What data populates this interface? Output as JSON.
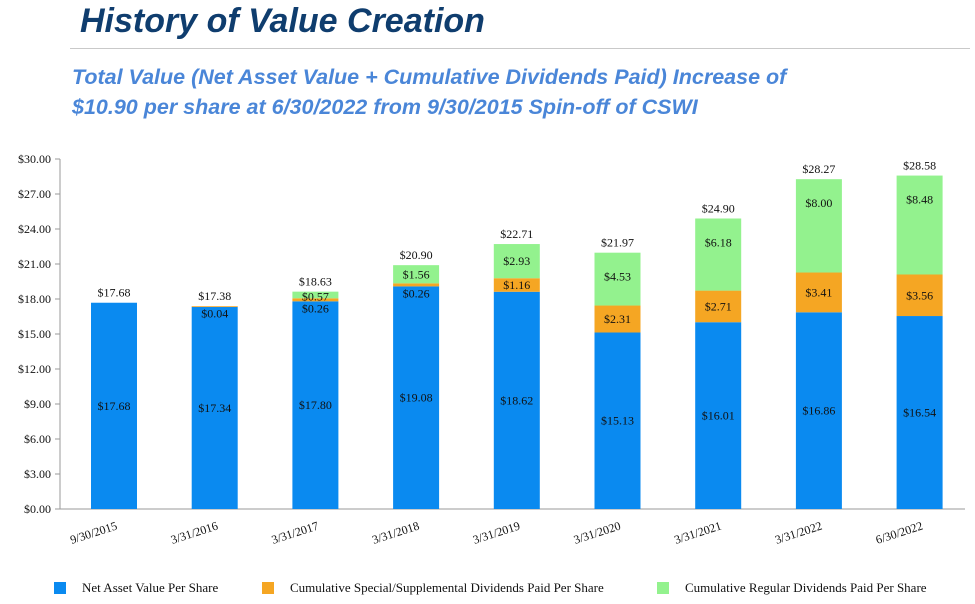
{
  "header": {
    "title": "History of Value Creation",
    "subtitle_line1": "Total Value (Net Asset Value + Cumulative Dividends Paid) Increase of",
    "subtitle_line2": "$10.90 per share at 6/30/2022 from 9/30/2015 Spin-off of CSWI"
  },
  "colors": {
    "nav": "#0A8AF0",
    "special": "#F5A623",
    "regular": "#93F28E",
    "title": "#0F3D6E",
    "subtitle": "#4A86D8"
  },
  "chart_data": {
    "type": "bar",
    "stacked": true,
    "categories": [
      "9/30/2015",
      "3/31/2016",
      "3/31/2017",
      "3/31/2018",
      "3/31/2019",
      "3/31/2020",
      "3/31/2021",
      "3/31/2022",
      "6/30/2022"
    ],
    "series": [
      {
        "name": "Net Asset Value Per Share",
        "color": "#0A8AF0",
        "values": [
          17.68,
          17.34,
          17.8,
          19.08,
          18.62,
          15.13,
          16.01,
          16.86,
          16.54
        ],
        "labels": [
          "$17.68",
          "$17.34",
          "$17.80",
          "$19.08",
          "$18.62",
          "$15.13",
          "$16.01",
          "$16.86",
          "$16.54"
        ]
      },
      {
        "name": "Cumulative Special/Supplemental Dividends Paid Per Share",
        "color": "#F5A623",
        "values": [
          0,
          0.04,
          0.26,
          0.26,
          1.16,
          2.31,
          2.71,
          3.41,
          3.56
        ],
        "labels": [
          "",
          "$0.04",
          "$0.26",
          "$0.26",
          "$1.16",
          "$2.31",
          "$2.71",
          "$3.41",
          "$3.56"
        ]
      },
      {
        "name": "Cumulative Regular Dividends Paid Per Share",
        "color": "#93F28E",
        "values": [
          0,
          0,
          0.57,
          1.56,
          2.93,
          4.53,
          6.18,
          8.0,
          8.48
        ],
        "labels": [
          "",
          "",
          "$0.57",
          "$1.56",
          "$2.93",
          "$4.53",
          "$6.18",
          "$8.00",
          "$8.48"
        ]
      }
    ],
    "totals": [
      17.68,
      17.38,
      18.63,
      20.9,
      22.71,
      21.97,
      24.9,
      28.27,
      28.58
    ],
    "total_labels": [
      "$17.68",
      "$17.38",
      "$18.63",
      "$20.90",
      "$22.71",
      "$21.97",
      "$24.90",
      "$28.27",
      "$28.58"
    ],
    "yticks": [
      0,
      3,
      6,
      9,
      12,
      15,
      18,
      21,
      24,
      27,
      30
    ],
    "ytick_labels": [
      "$0.00",
      "$3.00",
      "$6.00",
      "$9.00",
      "$12.00",
      "$15.00",
      "$18.00",
      "$21.00",
      "$24.00",
      "$27.00",
      "$30.00"
    ],
    "ylim": [
      0,
      30
    ],
    "grid": false,
    "legend_position": "bottom"
  },
  "legend": {
    "nav": "Net Asset Value Per Share",
    "special": "Cumulative Special/Supplemental Dividends Paid Per Share",
    "regular": "Cumulative Regular Dividends Paid Per Share"
  }
}
